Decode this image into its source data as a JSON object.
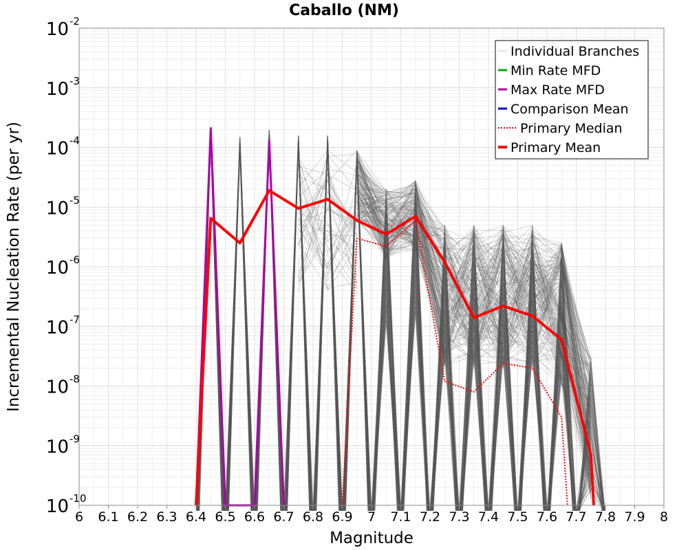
{
  "chart_data": {
    "type": "line",
    "title": "Caballo (NM)",
    "xlabel": "Magnitude",
    "ylabel": "Incremental Nucleation Rate (per yr)",
    "xlim": [
      6,
      8
    ],
    "ylim": [
      1e-10,
      0.01
    ],
    "yscale": "log",
    "grid": true,
    "x_ticks": [
      "6",
      "6.1",
      "6.2",
      "6.3",
      "6.4",
      "6.5",
      "6.6",
      "6.7",
      "6.8",
      "6.9",
      "7",
      "7.1",
      "7.2",
      "7.3",
      "7.4",
      "7.5",
      "7.6",
      "7.7",
      "7.8",
      "7.9",
      "8"
    ],
    "y_ticks": [
      {
        "base": "10",
        "exp": "-2"
      },
      {
        "base": "10",
        "exp": "-3"
      },
      {
        "base": "10",
        "exp": "-4"
      },
      {
        "base": "10",
        "exp": "-5"
      },
      {
        "base": "10",
        "exp": "-6"
      },
      {
        "base": "10",
        "exp": "-7"
      },
      {
        "base": "10",
        "exp": "-8"
      },
      {
        "base": "10",
        "exp": "-9"
      },
      {
        "base": "10",
        "exp": "-10"
      }
    ],
    "legend_position": "top-right",
    "legend": [
      {
        "label": "Individual Branches",
        "color": "#bbbbbb",
        "style": "thin"
      },
      {
        "label": "Min Rate MFD",
        "color": "#00aa00",
        "style": "solid"
      },
      {
        "label": "Max Rate MFD",
        "color": "#aa00aa",
        "style": "solid"
      },
      {
        "label": "Comparison Mean",
        "color": "#0000cc",
        "style": "solid"
      },
      {
        "label": "Primary Median",
        "color": "#ff0000",
        "style": "dotted"
      },
      {
        "label": "Primary Mean",
        "color": "#ff0000",
        "style": "thick"
      }
    ],
    "branch_color": "#555555",
    "branch_spikes": [
      {
        "x": 6.45,
        "y": 0.0002
      },
      {
        "x": 6.55,
        "y": 0.00015
      },
      {
        "x": 6.65,
        "y": 0.0002
      },
      {
        "x": 6.75,
        "y": 0.00016
      },
      {
        "x": 6.85,
        "y": 0.00016
      },
      {
        "x": 6.95,
        "y": 9e-05
      },
      {
        "x": 7.05,
        "y": 2e-05
      },
      {
        "x": 7.15,
        "y": 2.8e-05
      },
      {
        "x": 7.25,
        "y": 5e-06
      },
      {
        "x": 7.35,
        "y": 5e-06
      },
      {
        "x": 7.45,
        "y": 5e-06
      },
      {
        "x": 7.55,
        "y": 5e-06
      },
      {
        "x": 7.65,
        "y": 2.5e-06
      },
      {
        "x": 7.75,
        "y": 3e-08
      }
    ],
    "series": [
      {
        "name": "Primary Mean",
        "color": "#ff0000",
        "x": [
          6.4,
          6.45,
          6.55,
          6.65,
          6.75,
          6.85,
          6.95,
          7.05,
          7.15,
          7.25,
          7.35,
          7.45,
          7.55,
          7.65,
          7.75,
          7.76
        ],
        "y": [
          1e-10,
          6.5e-06,
          2.5e-06,
          1.9e-05,
          9.5e-06,
          1.35e-05,
          6e-06,
          3.5e-06,
          7e-06,
          1.2e-06,
          1.4e-07,
          2.2e-07,
          1.5e-07,
          6e-08,
          7e-10,
          1e-10
        ]
      },
      {
        "name": "Primary Median",
        "color": "#ff0000",
        "x": [
          6.9,
          6.95,
          7.05,
          7.15,
          7.25,
          7.35,
          7.45,
          7.55,
          7.65,
          7.67
        ],
        "y": [
          1e-10,
          3e-06,
          2.2e-06,
          6e-06,
          1.2e-08,
          8e-09,
          2.4e-08,
          2e-08,
          3e-09,
          1e-10
        ]
      },
      {
        "name": "Max Rate MFD",
        "color": "#aa00aa",
        "x": [
          6.4,
          6.45,
          6.5,
          6.6,
          6.65,
          6.7
        ],
        "y": [
          1e-10,
          0.00021,
          1e-10,
          1e-10,
          0.00013,
          1e-10
        ]
      }
    ]
  }
}
